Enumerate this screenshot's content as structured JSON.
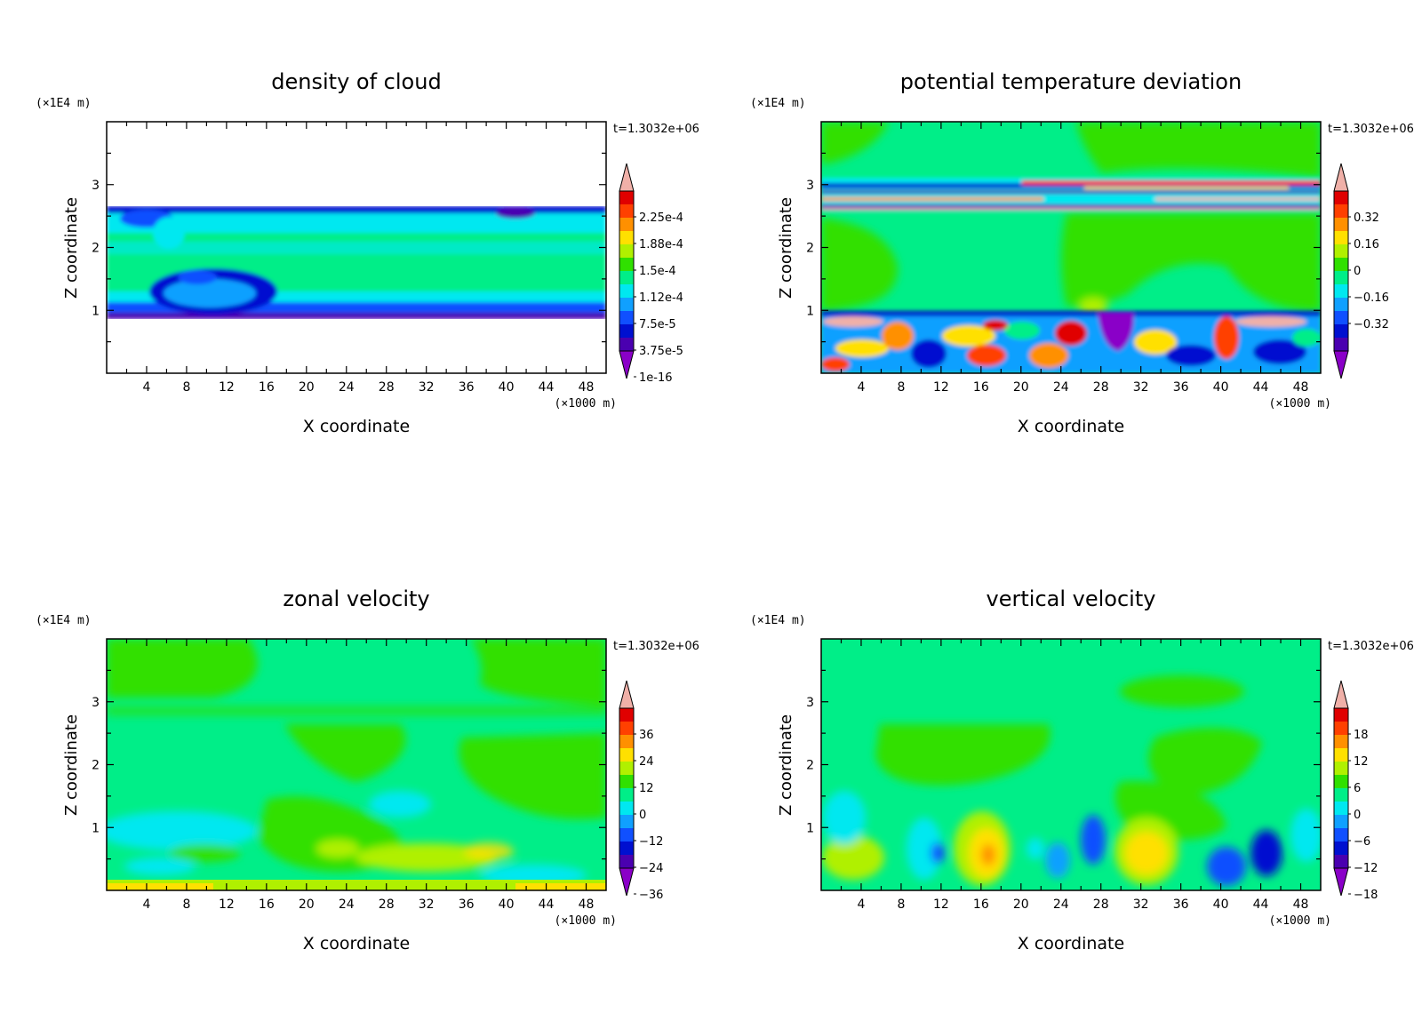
{
  "chart_data": [
    {
      "type": "heatmap",
      "title": "density of cloud",
      "xlabel": "X coordinate",
      "ylabel": "Z coordinate",
      "x_unit": "(×1000 m)",
      "y_unit": "(×1E4 m)",
      "time_label": "t=1.3032e+06",
      "xlim": [
        0,
        50
      ],
      "ylim": [
        0,
        4
      ],
      "x_ticks": [
        4,
        8,
        12,
        16,
        20,
        24,
        28,
        32,
        36,
        40,
        44,
        48
      ],
      "y_ticks": [
        1,
        2,
        3
      ],
      "colorbar_labels": [
        "2.25e-4",
        "1.88e-4",
        "1.5e-4",
        "1.12e-4",
        "7.5e-5",
        "3.75e-5",
        "1e-16"
      ],
      "background_color": "#ffffff"
    },
    {
      "type": "heatmap",
      "title": "potential temperature deviation",
      "xlabel": "X coordinate",
      "ylabel": "Z coordinate",
      "x_unit": "(×1000 m)",
      "y_unit": "(×1E4 m)",
      "time_label": "t=1.3032e+06",
      "xlim": [
        0,
        50
      ],
      "ylim": [
        0,
        4
      ],
      "x_ticks": [
        4,
        8,
        12,
        16,
        20,
        24,
        28,
        32,
        36,
        40,
        44,
        48
      ],
      "y_ticks": [
        1,
        2,
        3
      ],
      "colorbar_labels": [
        "0.32",
        "0.16",
        "0",
        "−0.16",
        "−0.32"
      ],
      "background_color": "#00ee88"
    },
    {
      "type": "heatmap",
      "title": "zonal velocity",
      "xlabel": "X coordinate",
      "ylabel": "Z coordinate",
      "x_unit": "(×1000 m)",
      "y_unit": "(×1E4 m)",
      "time_label": "t=1.3032e+06",
      "xlim": [
        0,
        50
      ],
      "ylim": [
        0,
        4
      ],
      "x_ticks": [
        4,
        8,
        12,
        16,
        20,
        24,
        28,
        32,
        36,
        40,
        44,
        48
      ],
      "y_ticks": [
        1,
        2,
        3
      ],
      "colorbar_labels": [
        "36",
        "24",
        "12",
        "0",
        "−12",
        "−24",
        "−36"
      ],
      "background_color": "#00ee88"
    },
    {
      "type": "heatmap",
      "title": "vertical velocity",
      "xlabel": "X coordinate",
      "ylabel": "Z coordinate",
      "x_unit": "(×1000 m)",
      "y_unit": "(×1E4 m)",
      "time_label": "t=1.3032e+06",
      "xlim": [
        0,
        50
      ],
      "ylim": [
        0,
        4
      ],
      "x_ticks": [
        4,
        8,
        12,
        16,
        20,
        24,
        28,
        32,
        36,
        40,
        44,
        48
      ],
      "y_ticks": [
        1,
        2,
        3
      ],
      "colorbar_labels": [
        "18",
        "12",
        "6",
        "0",
        "−6",
        "−12",
        "−18"
      ],
      "background_color": "#00ee88"
    }
  ],
  "colorbar_colors": [
    "#8a00c8",
    "#4a00b0",
    "#0010d0",
    "#1050ff",
    "#10a0ff",
    "#00e8f0",
    "#00ee88",
    "#30e000",
    "#b0f000",
    "#ffe000",
    "#ff9000",
    "#ff4000",
    "#e00000",
    "#f0b0a8"
  ]
}
